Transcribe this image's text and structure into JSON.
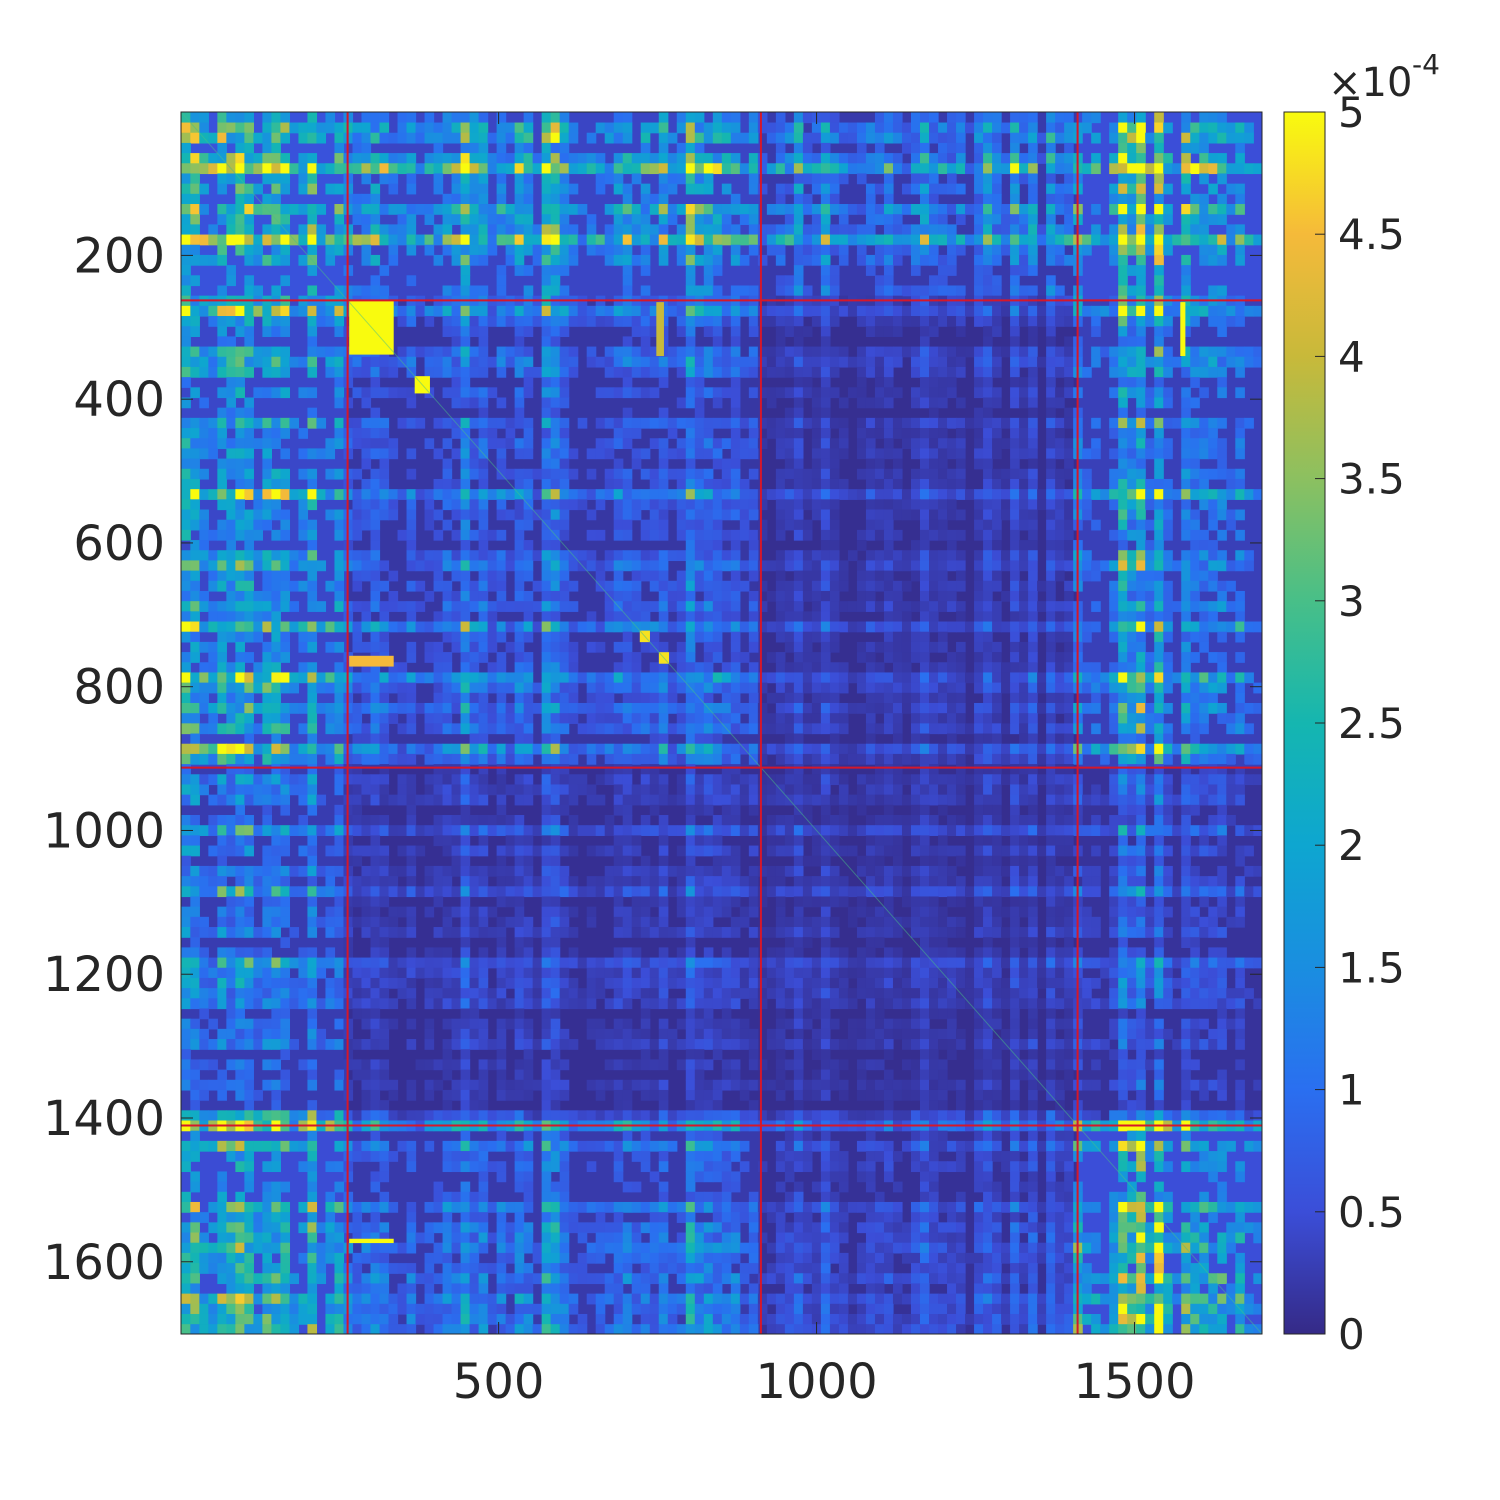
{
  "chart_data": {
    "type": "heatmap",
    "title": "",
    "xlabel": "",
    "ylabel": "",
    "xlim": [
      1,
      1700
    ],
    "ylim": [
      1,
      1700
    ],
    "y_direction": "reverse",
    "x_ticks": [
      500,
      1000,
      1500
    ],
    "x_tick_labels": [
      "500",
      "1000",
      "1500"
    ],
    "y_ticks": [
      200,
      400,
      600,
      800,
      1000,
      1200,
      1400,
      1600
    ],
    "y_tick_labels": [
      "200",
      "400",
      "600",
      "800",
      "1000",
      "1200",
      "1400",
      "1600"
    ],
    "colormap": "parula",
    "color_limits": [
      0,
      0.0005
    ],
    "colorbar": {
      "ticks": [
        0,
        0.5,
        1,
        1.5,
        2,
        2.5,
        3,
        3.5,
        4,
        4.5,
        5
      ],
      "tick_labels": [
        "0",
        "0.5",
        "1",
        "1.5",
        "2",
        "2.5",
        "3",
        "3.5",
        "4",
        "4.5",
        "5"
      ],
      "exponent_label": "×10",
      "exponent": "-4"
    },
    "grid": false,
    "legend": "none",
    "block_boundaries": [
      262,
      912,
      1410
    ],
    "block_boundary_color": "#d6172a",
    "block_mean_level": {
      "note_rows_by_blocks": [
        "1-262",
        "263-912",
        "913-1410",
        "1411-1700"
      ],
      "matrix": [
        [
          0.45,
          0.3,
          0.18,
          0.4
        ],
        [
          0.32,
          0.14,
          0.05,
          0.24
        ],
        [
          0.2,
          0.06,
          0.04,
          0.1
        ],
        [
          0.38,
          0.18,
          0.08,
          0.4
        ]
      ]
    },
    "bright_patches": [
      {
        "rows": [
          263,
          338
        ],
        "cols": [
          265,
          335
        ],
        "value": 0.0005
      },
      {
        "rows": [
          368,
          392
        ],
        "cols": [
          368,
          392
        ],
        "value": 0.0005
      },
      {
        "rows": [
          722,
          738
        ],
        "cols": [
          722,
          738
        ],
        "value": 0.00048
      },
      {
        "rows": [
          752,
          768
        ],
        "cols": [
          752,
          768
        ],
        "value": 0.00048
      },
      {
        "rows": [
          757,
          772
        ],
        "cols": [
          265,
          335
        ],
        "value": 0.00045
      },
      {
        "rows": [
          265,
          340
        ],
        "cols": [
          748,
          760
        ],
        "value": 0.0004
      },
      {
        "rows": [
          265,
          340
        ],
        "cols": [
          1572,
          1580
        ],
        "value": 0.0005
      },
      {
        "rows": [
          1568,
          1574
        ],
        "cols": [
          265,
          335
        ],
        "value": 0.0005
      }
    ]
  }
}
